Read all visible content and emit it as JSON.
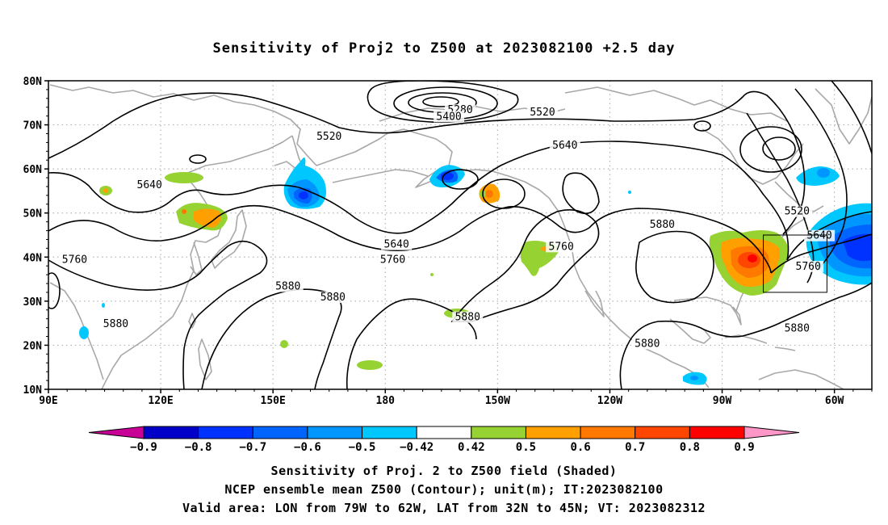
{
  "title": "Sensitivity of Proj2 to Z500 at 2023082100 +2.5 day",
  "map": {
    "lat_labels": [
      "80N",
      "70N",
      "60N",
      "50N",
      "40N",
      "30N",
      "20N",
      "10N"
    ],
    "lon_labels": [
      "90E",
      "120E",
      "150E",
      "180",
      "150W",
      "120W",
      "90W",
      "60W"
    ],
    "lon_range": [
      90,
      310
    ],
    "lat_range": [
      10,
      80
    ],
    "grid": "dotted",
    "valid_box": {
      "lon_from": "79W",
      "lon_to": "62W",
      "lat_from": "32N",
      "lat_to": "45N"
    }
  },
  "contour_labels": [
    {
      "text": "5280",
      "lon": 200,
      "lat": 73.0
    },
    {
      "text": "5400",
      "lon": 197,
      "lat": 71.5
    },
    {
      "text": "5520",
      "lon": 222,
      "lat": 72.5
    },
    {
      "text": "5520",
      "lon": 165,
      "lat": 67.0
    },
    {
      "text": "5640",
      "lon": 228,
      "lat": 65.0
    },
    {
      "text": "5640",
      "lon": 117,
      "lat": 56.0
    },
    {
      "text": "5640",
      "lon": 183,
      "lat": 42.5
    },
    {
      "text": "5760",
      "lon": 97,
      "lat": 39.0
    },
    {
      "text": "5760",
      "lon": 182,
      "lat": 39.0
    },
    {
      "text": "5760",
      "lon": 227,
      "lat": 42.0
    },
    {
      "text": "5880",
      "lon": 154,
      "lat": 33.0
    },
    {
      "text": "5880",
      "lon": 166,
      "lat": 30.5
    },
    {
      "text": "5880",
      "lon": 108,
      "lat": 24.5
    },
    {
      "text": "5880",
      "lon": 202,
      "lat": 26.0
    },
    {
      "text": "5880",
      "lon": 254,
      "lat": 47.0
    },
    {
      "text": "5880",
      "lon": 250,
      "lat": 20.0
    },
    {
      "text": "5880",
      "lon": 290,
      "lat": 23.5
    },
    {
      "text": "5520",
      "lon": 290,
      "lat": 50.0
    },
    {
      "text": "5640",
      "lon": 296,
      "lat": 44.5
    },
    {
      "text": "5760",
      "lon": 293,
      "lat": 37.5
    }
  ],
  "colorbar": {
    "labels": [
      "-0.9",
      "-0.8",
      "-0.7",
      "-0.6",
      "-0.5",
      "-0.42",
      "0.42",
      "0.5",
      "0.6",
      "0.7",
      "0.8",
      "0.9"
    ],
    "colors": [
      "#c80096",
      "#0000c8",
      "#0032ff",
      "#0064ff",
      "#0096ff",
      "#00c8ff",
      "#ffffff",
      "#96d232",
      "#ffa000",
      "#ff7800",
      "#ff4600",
      "#ff0000",
      "#ff96c8"
    ]
  },
  "captions": [
    "Sensitivity of Proj. 2 to Z500 field (Shaded)",
    "NCEP ensemble mean Z500 (Contour); unit(m); IT:2023082100",
    "Valid area: LON from 79W to 62W, LAT from 32N to 45N; VT: 2023082312"
  ]
}
